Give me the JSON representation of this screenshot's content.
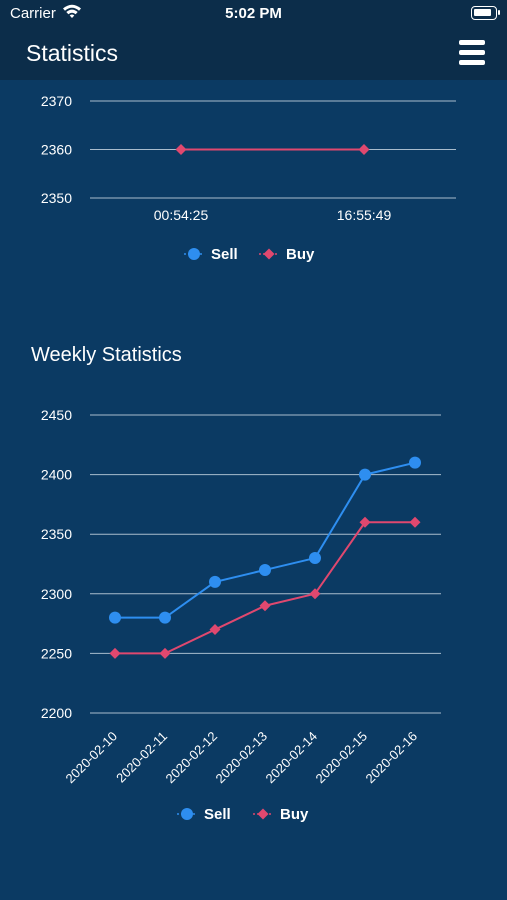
{
  "status_bar": {
    "carrier": "Carrier",
    "time": "5:02 PM"
  },
  "header": {
    "title": "Statistics",
    "menu_icon": "hamburger-menu-icon"
  },
  "colors": {
    "sell": "#2e8ef0",
    "buy": "#e0486f",
    "grid": "#a9bccd",
    "background": "#0b3a63",
    "bar": "#0c2d4a"
  },
  "sections": {
    "weekly_title": "Weekly Statistics"
  },
  "chart_data": [
    {
      "type": "line",
      "x": [
        "00:54:25",
        "16:55:49"
      ],
      "yticks": [
        2350,
        2360,
        2370
      ],
      "ylim": [
        2350,
        2370
      ],
      "series": [
        {
          "name": "Sell",
          "values": [
            null,
            null
          ]
        },
        {
          "name": "Buy",
          "values": [
            2360,
            2360
          ]
        }
      ],
      "legend": [
        "Sell",
        "Buy"
      ],
      "legend_position": "bottom",
      "grid": true
    },
    {
      "type": "line",
      "x": [
        "2020-02-10",
        "2020-02-11",
        "2020-02-12",
        "2020-02-13",
        "2020-02-14",
        "2020-02-15",
        "2020-02-16"
      ],
      "yticks": [
        2200,
        2250,
        2300,
        2350,
        2400,
        2450
      ],
      "ylim": [
        2200,
        2450
      ],
      "series": [
        {
          "name": "Sell",
          "values": [
            2280,
            2280,
            2310,
            2320,
            2330,
            2400,
            2410
          ]
        },
        {
          "name": "Buy",
          "values": [
            2250,
            2250,
            2270,
            2290,
            2300,
            2360,
            2360
          ]
        }
      ],
      "legend": [
        "Sell",
        "Buy"
      ],
      "legend_position": "bottom",
      "grid": true
    }
  ]
}
